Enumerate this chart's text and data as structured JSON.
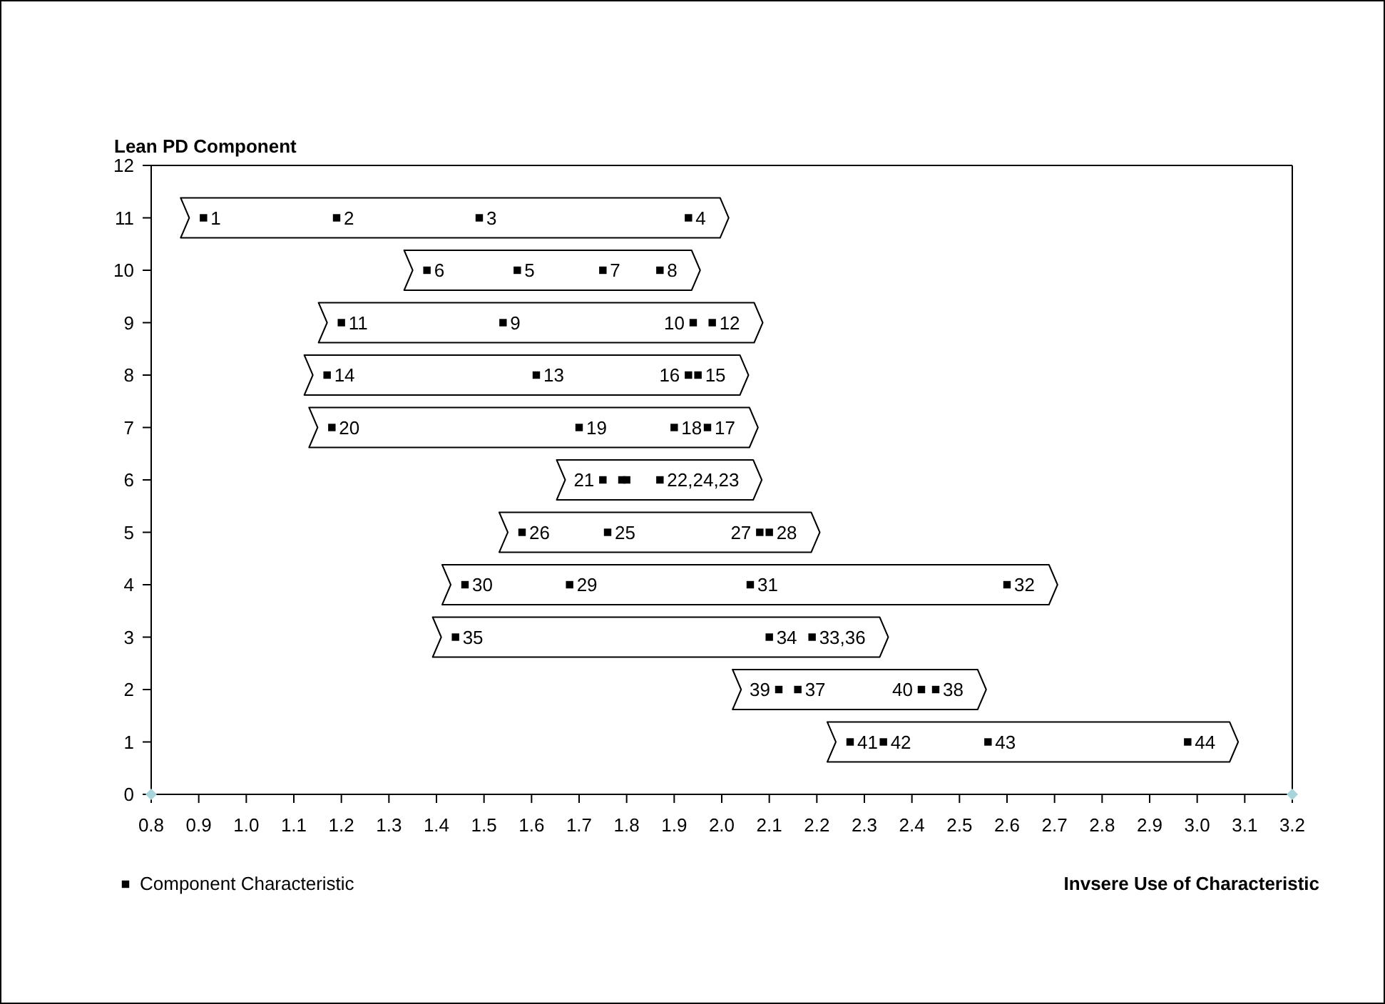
{
  "chart_data": {
    "type": "scatter",
    "title": "Lean PD Component",
    "xlabel": "Invsere Use of Characteristic",
    "xlim": [
      0.8,
      3.2
    ],
    "ylim": [
      0,
      12
    ],
    "xticks": [
      0.8,
      0.9,
      {
        "value": 1,
        "label": "1.0"
      },
      1.1,
      1.2,
      1.3,
      1.4,
      1.5,
      1.6,
      1.7,
      1.8,
      1.9,
      {
        "value": 2,
        "label": "2.0"
      },
      2.1,
      2.2,
      2.3,
      2.4,
      2.5,
      2.6,
      2.7,
      2.8,
      2.9,
      {
        "value": 3,
        "label": "3.0"
      },
      3.1,
      3.2
    ],
    "yticks": [
      0,
      1,
      2,
      3,
      4,
      5,
      6,
      7,
      8,
      9,
      10,
      11,
      12
    ],
    "grid": false,
    "legend": "bottom left",
    "series": [
      {
        "name": "Component Characteristic",
        "color": "#000000",
        "marker": "square",
        "x": [
          0.91,
          1.19,
          1.49,
          1.93,
          1.38,
          1.57,
          1.75,
          1.87,
          1.2,
          1.54,
          1.94,
          1.98,
          1.17,
          1.61,
          1.93,
          1.95,
          1.18,
          1.7,
          1.9,
          1.97,
          1.75,
          1.79,
          1.8,
          1.87,
          1.58,
          1.76,
          2.08,
          2.1,
          1.46,
          1.68,
          2.06,
          2.6,
          1.44,
          2.1,
          2.19,
          2.12,
          2.16,
          2.42,
          2.45,
          2.27,
          2.34,
          2.56,
          2.98
        ],
        "values": [
          11,
          11,
          11,
          11,
          10,
          10,
          10,
          10,
          9,
          9,
          9,
          9,
          8,
          8,
          8,
          8,
          7,
          7,
          7,
          7,
          6,
          6,
          6,
          6,
          5,
          5,
          5,
          5,
          4,
          4,
          4,
          4,
          3,
          3,
          3,
          2,
          2,
          2,
          2,
          1,
          1,
          1,
          1
        ]
      },
      {
        "color": "#a8d4dc",
        "marker": "diamond",
        "x": [
          0.8,
          3.2
        ],
        "values": [
          0,
          0
        ]
      }
    ],
    "annotations": [
      {
        "text": "1",
        "x": 0.91,
        "y": 11
      },
      {
        "text": "2",
        "x": 1.19,
        "y": 11
      },
      {
        "text": "3",
        "x": 1.49,
        "y": 11
      },
      {
        "text": "4",
        "x": 1.93,
        "y": 11
      },
      {
        "text": "6",
        "x": 1.38,
        "y": 10
      },
      {
        "text": "5",
        "x": 1.57,
        "y": 10
      },
      {
        "text": "7",
        "x": 1.75,
        "y": 10
      },
      {
        "text": "8",
        "x": 1.87,
        "y": 10
      },
      {
        "text": "11",
        "x": 1.2,
        "y": 9
      },
      {
        "text": "9",
        "x": 1.54,
        "y": 9
      },
      {
        "text": "10",
        "x": 1.94,
        "y": 9
      },
      {
        "text": "12",
        "x": 1.98,
        "y": 9
      },
      {
        "text": "14",
        "x": 1.17,
        "y": 8
      },
      {
        "text": "13",
        "x": 1.61,
        "y": 8
      },
      {
        "text": "16",
        "x": 1.93,
        "y": 8
      },
      {
        "text": "15",
        "x": 1.95,
        "y": 8
      },
      {
        "text": "20",
        "x": 1.18,
        "y": 7
      },
      {
        "text": "19",
        "x": 1.7,
        "y": 7
      },
      {
        "text": "18",
        "x": 1.9,
        "y": 7
      },
      {
        "text": "17",
        "x": 1.97,
        "y": 7
      },
      {
        "text": "21",
        "x": 1.75,
        "y": 6
      },
      {
        "text": "22,24,23",
        "x": 1.87,
        "y": 6
      },
      {
        "text": "26",
        "x": 1.58,
        "y": 5
      },
      {
        "text": "25",
        "x": 1.76,
        "y": 5
      },
      {
        "text": "27",
        "x": 2.08,
        "y": 5
      },
      {
        "text": "28",
        "x": 2.1,
        "y": 5
      },
      {
        "text": "30",
        "x": 1.46,
        "y": 4
      },
      {
        "text": "29",
        "x": 1.68,
        "y": 4
      },
      {
        "text": "31",
        "x": 2.06,
        "y": 4
      },
      {
        "text": "32",
        "x": 2.6,
        "y": 4
      },
      {
        "text": "35",
        "x": 1.44,
        "y": 3
      },
      {
        "text": "34",
        "x": 2.1,
        "y": 3
      },
      {
        "text": "33,36",
        "x": 2.19,
        "y": 3
      },
      {
        "text": "39",
        "x": 2.12,
        "y": 2
      },
      {
        "text": "37",
        "x": 2.16,
        "y": 2
      },
      {
        "text": "40",
        "x": 2.42,
        "y": 2
      },
      {
        "text": "38",
        "x": 2.45,
        "y": 2
      },
      {
        "text": "41",
        "x": 2.27,
        "y": 1
      },
      {
        "text": "42",
        "x": 2.34,
        "y": 1
      },
      {
        "text": "43",
        "x": 2.56,
        "y": 1
      },
      {
        "text": "44",
        "x": 2.98,
        "y": 1
      }
    ]
  }
}
